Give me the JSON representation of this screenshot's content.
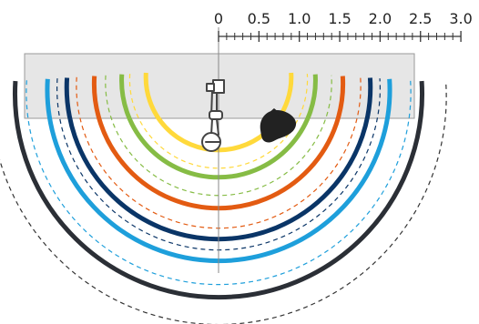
{
  "scale": {
    "unit_per_meter_ticks": 10,
    "labels": [
      "0",
      "0.5",
      "1.0",
      "1.5",
      "2.0",
      "2.5",
      "3.0"
    ],
    "values": [
      0,
      0.5,
      1.0,
      1.5,
      2.0,
      2.5,
      3.0
    ]
  },
  "rings": [
    {
      "name": "ring-yellow-solid",
      "radius_m": 0.9,
      "color": "#FFD93B",
      "style": "solid"
    },
    {
      "name": "ring-yellow-dashed",
      "radius_m": 1.1,
      "color": "#FFD93B",
      "style": "dashed"
    },
    {
      "name": "ring-green-solid",
      "radius_m": 1.2,
      "color": "#86BC45",
      "style": "solid"
    },
    {
      "name": "ring-green-dashed",
      "radius_m": 1.4,
      "color": "#86BC45",
      "style": "dashed"
    },
    {
      "name": "ring-orange-solid",
      "radius_m": 1.54,
      "color": "#E35B12",
      "style": "solid"
    },
    {
      "name": "ring-orange-dashed",
      "radius_m": 1.76,
      "color": "#E35B12",
      "style": "dashed"
    },
    {
      "name": "ring-navy-solid",
      "radius_m": 1.88,
      "color": "#0A3567",
      "style": "solid"
    },
    {
      "name": "ring-navy-dashed",
      "radius_m": 2.0,
      "color": "#0A3567",
      "style": "dashed"
    },
    {
      "name": "ring-blue-solid",
      "radius_m": 2.12,
      "color": "#1E9FDB",
      "style": "solid"
    },
    {
      "name": "ring-blue-dashed",
      "radius_m": 2.38,
      "color": "#1E9FDB",
      "style": "dashed"
    },
    {
      "name": "ring-charcoal-solid",
      "radius_m": 2.52,
      "color": "#2B2F36",
      "style": "solid"
    },
    {
      "name": "ring-charcoal-dashed",
      "radius_m": 2.82,
      "color": "#333333",
      "style": "dashed"
    }
  ],
  "colors": {
    "room_fill": "#E6E6E6",
    "room_stroke": "#999999",
    "axis": "#888888",
    "figure_stroke": "#444444",
    "head": "#222222"
  }
}
